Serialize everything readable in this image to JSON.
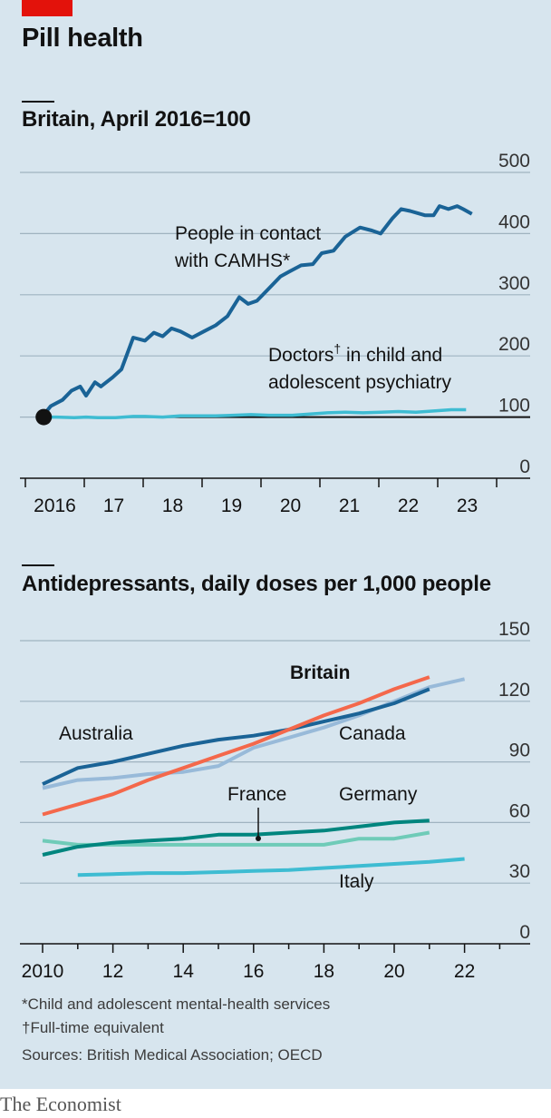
{
  "title": "Pill health",
  "chart_data": [
    {
      "type": "line",
      "title": "Britain, April 2016=100",
      "ylim": [
        0,
        500
      ],
      "yticks": [
        0,
        100,
        200,
        300,
        400,
        500
      ],
      "xlim": [
        2016.0,
        2024.0
      ],
      "xtick_labels": [
        {
          "x": 2016,
          "label": "2016"
        },
        {
          "x": 2017,
          "label": "17"
        },
        {
          "x": 2018,
          "label": "18"
        },
        {
          "x": 2019,
          "label": "19"
        },
        {
          "x": 2020,
          "label": "20"
        },
        {
          "x": 2021,
          "label": "21"
        },
        {
          "x": 2022,
          "label": "22"
        },
        {
          "x": 2023,
          "label": "23"
        }
      ],
      "grid": true,
      "series": [
        {
          "name": "People in contact with CAMHS*",
          "color": "#1a6396",
          "x": [
            2016.25,
            2016.4,
            2016.6,
            2016.75,
            2016.9,
            2017.0,
            2017.15,
            2017.25,
            2017.45,
            2017.6,
            2017.8,
            2018.0,
            2018.15,
            2018.3,
            2018.45,
            2018.6,
            2018.8,
            2019.0,
            2019.2,
            2019.4,
            2019.6,
            2019.75,
            2019.9,
            2020.1,
            2020.3,
            2020.45,
            2020.65,
            2020.85,
            2021.0,
            2021.2,
            2021.4,
            2021.65,
            2021.85,
            2022.0,
            2022.2,
            2022.35,
            2022.5,
            2022.75,
            2022.9,
            2023.0,
            2023.15,
            2023.3,
            2023.4,
            2023.55
          ],
          "values": [
            100,
            118,
            128,
            143,
            150,
            135,
            157,
            150,
            165,
            178,
            230,
            225,
            238,
            232,
            245,
            240,
            230,
            240,
            250,
            265,
            296,
            285,
            290,
            310,
            330,
            338,
            348,
            350,
            368,
            372,
            395,
            410,
            405,
            400,
            425,
            440,
            437,
            430,
            430,
            445,
            440,
            445,
            440,
            432
          ]
        },
        {
          "name": "Doctors† in child and adolescent psychiatry",
          "color": "#3ebcd2",
          "x": [
            2016.25,
            2016.5,
            2016.8,
            2017.0,
            2017.2,
            2017.5,
            2017.8,
            2018.0,
            2018.3,
            2018.6,
            2018.9,
            2019.2,
            2019.5,
            2019.8,
            2020.1,
            2020.5,
            2020.8,
            2021.1,
            2021.4,
            2021.7,
            2022.0,
            2022.3,
            2022.6,
            2022.9,
            2023.2,
            2023.45
          ],
          "values": [
            100,
            100,
            99,
            100,
            99,
            99,
            101,
            101,
            100,
            102,
            102,
            102,
            103,
            104,
            103,
            103,
            105,
            107,
            108,
            107,
            108,
            109,
            108,
            110,
            112,
            112
          ]
        }
      ]
    },
    {
      "type": "line",
      "title": "Antidepressants, daily doses per 1,000 people",
      "ylim": [
        0,
        150
      ],
      "yticks": [
        0,
        30,
        60,
        90,
        120,
        150
      ],
      "xlim": [
        2010,
        2023
      ],
      "xticks": [
        2010,
        2012,
        2014,
        2016,
        2018,
        2020,
        2022
      ],
      "xtick_labels": [
        "2010",
        "12",
        "14",
        "16",
        "18",
        "20",
        "22"
      ],
      "grid": true,
      "series": [
        {
          "name": "Australia",
          "color": "#1a6396",
          "x": [
            2010,
            2011,
            2012,
            2013,
            2014,
            2015,
            2016,
            2017,
            2018,
            2019,
            2020,
            2021
          ],
          "values": [
            79,
            87,
            90,
            94,
            98,
            101,
            103,
            106,
            110,
            114,
            119,
            126
          ]
        },
        {
          "name": "Britain",
          "color": "#f4684b",
          "x": [
            2010,
            2011,
            2012,
            2013,
            2014,
            2015,
            2016,
            2017,
            2018,
            2019,
            2020,
            2021
          ],
          "values": [
            64,
            69,
            74,
            81,
            87,
            93,
            99,
            106,
            113,
            119,
            126,
            132
          ]
        },
        {
          "name": "Canada",
          "color": "#98bad9",
          "x": [
            2010,
            2011,
            2012,
            2013,
            2014,
            2015,
            2016,
            2017,
            2018,
            2019,
            2020,
            2021,
            2022
          ],
          "values": [
            77,
            81,
            82,
            84,
            85,
            88,
            97,
            102,
            107,
            113,
            120,
            127,
            131
          ]
        },
        {
          "name": "Germany",
          "color": "#00857e",
          "x": [
            2010,
            2011,
            2012,
            2013,
            2014,
            2015,
            2016,
            2017,
            2018,
            2019,
            2020,
            2021
          ],
          "values": [
            44,
            48,
            50,
            51,
            52,
            54,
            54,
            55,
            56,
            58,
            60,
            61
          ]
        },
        {
          "name": "France",
          "color": "#6fcbb8",
          "x": [
            2010,
            2011,
            2012,
            2013,
            2014,
            2015,
            2016,
            2017,
            2018,
            2019,
            2020,
            2021
          ],
          "values": [
            51,
            49,
            49,
            49,
            49,
            49,
            49,
            49,
            49,
            52,
            52,
            55
          ]
        },
        {
          "name": "Italy",
          "color": "#3ebcd2",
          "x": [
            2011,
            2012,
            2013,
            2014,
            2015,
            2016,
            2017,
            2018,
            2019,
            2020,
            2021,
            2022
          ],
          "values": [
            34,
            34.5,
            35,
            35,
            35.5,
            36,
            36.5,
            37.5,
            38.5,
            39.5,
            40.5,
            42
          ]
        }
      ],
      "annotations": [
        {
          "text": "Australia",
          "series": "Australia"
        },
        {
          "text": "Britain",
          "series": "Britain",
          "bold": true
        },
        {
          "text": "Canada",
          "series": "Canada"
        },
        {
          "text": "Germany",
          "series": "Germany"
        },
        {
          "text": "France",
          "series": "France"
        },
        {
          "text": "Italy",
          "series": "Italy"
        }
      ]
    }
  ],
  "chart1_labels": {
    "camhs_line1": "People in contact",
    "camhs_line2": "with CAMHS*",
    "doctors_line1": "Doctors",
    "doctors_dagger": "†",
    "doctors_line1b": " in child and",
    "doctors_line2": "adolescent psychiatry"
  },
  "chart2_labels": {
    "australia": "Australia",
    "britain": "Britain",
    "canada": "Canada",
    "france": "France",
    "germany": "Germany",
    "italy": "Italy"
  },
  "notes": {
    "footnote1": "*Child and adolescent mental-health services",
    "footnote2": "†Full-time equivalent",
    "sources": "Sources: British Medical Association; OECD"
  },
  "brand": "The Economist"
}
